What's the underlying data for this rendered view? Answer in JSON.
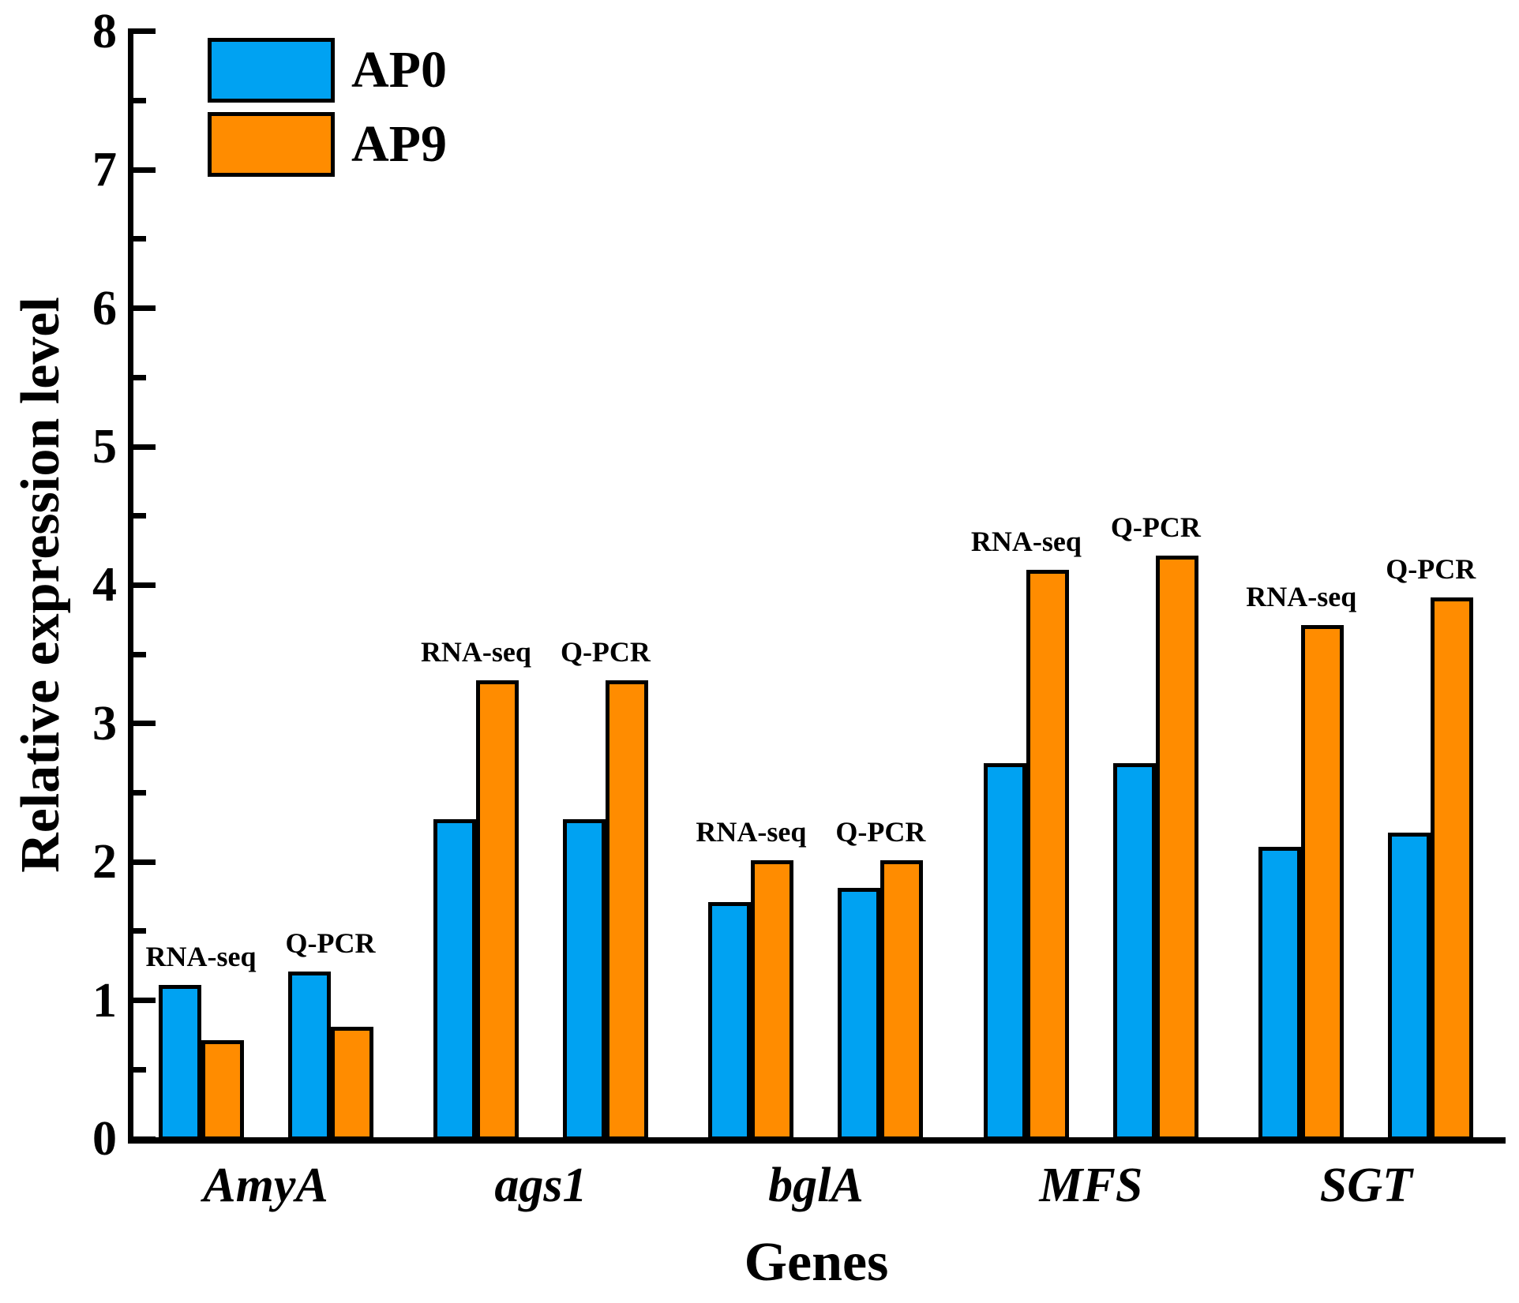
{
  "chart_data": {
    "type": "bar",
    "title": "",
    "xlabel": "Genes",
    "ylabel": "Relative expression level",
    "ylim": [
      0,
      8
    ],
    "ymajor_step": 1,
    "yminor_step": 0.5,
    "ytick_labels": [
      "0",
      "1",
      "2",
      "3",
      "4",
      "5",
      "6",
      "7",
      "8"
    ],
    "grid": false,
    "legend_position": "top-left-inside",
    "legend": [
      {
        "label": "AP0",
        "color": "#00A2F2"
      },
      {
        "label": "AP9",
        "color": "#FF8C00"
      }
    ],
    "series_names": [
      "AP0",
      "AP9"
    ],
    "categories": [
      "AmyA",
      "ags1",
      "bglA",
      "MFS",
      "SGT"
    ],
    "groups": [
      {
        "gene": "AmyA",
        "pairs": [
          {
            "label": "RNA-seq",
            "values": [
              1.1,
              0.7
            ]
          },
          {
            "label": "Q-PCR",
            "values": [
              1.2,
              0.8
            ]
          }
        ]
      },
      {
        "gene": "ags1",
        "pairs": [
          {
            "label": "RNA-seq",
            "values": [
              2.3,
              3.3
            ]
          },
          {
            "label": "Q-PCR",
            "values": [
              2.3,
              3.3
            ]
          }
        ]
      },
      {
        "gene": "bglA",
        "pairs": [
          {
            "label": "RNA-seq",
            "values": [
              1.7,
              2.0
            ]
          },
          {
            "label": "Q-PCR",
            "values": [
              1.8,
              2.0
            ]
          }
        ]
      },
      {
        "gene": "MFS",
        "pairs": [
          {
            "label": "RNA-seq",
            "values": [
              2.7,
              4.1
            ]
          },
          {
            "label": "Q-PCR",
            "values": [
              2.7,
              4.2
            ]
          }
        ]
      },
      {
        "gene": "SGT",
        "pairs": [
          {
            "label": "RNA-seq",
            "values": [
              2.1,
              3.7
            ]
          },
          {
            "label": "Q-PCR",
            "values": [
              2.2,
              3.9
            ]
          }
        ]
      }
    ]
  }
}
